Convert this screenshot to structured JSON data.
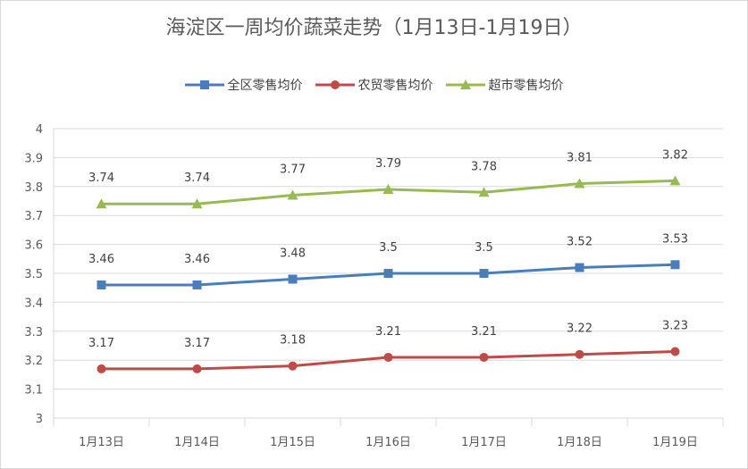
{
  "chart_data": {
    "type": "line",
    "title": "海淀区一周均价蔬菜走势（1月13日-1月19日）",
    "categories": [
      "1月13日",
      "1月14日",
      "1月15日",
      "1月16日",
      "1月17日",
      "1月18日",
      "1月19日"
    ],
    "ylim": [
      3,
      4
    ],
    "yticks": [
      "3",
      "3.1",
      "3.2",
      "3.3",
      "3.4",
      "3.5",
      "3.6",
      "3.7",
      "3.8",
      "3.9",
      "4"
    ],
    "grid": true,
    "legend_position": "top",
    "series": [
      {
        "name": "全区零售均价",
        "color": "#4a7ebb",
        "marker": "square",
        "values": [
          3.46,
          3.46,
          3.48,
          3.5,
          3.5,
          3.52,
          3.53
        ],
        "labels": [
          "3.46",
          "3.46",
          "3.48",
          "3.5",
          "3.5",
          "3.52",
          "3.53"
        ]
      },
      {
        "name": "农贸零售均价",
        "color": "#be4b48",
        "marker": "circle",
        "values": [
          3.17,
          3.17,
          3.18,
          3.21,
          3.21,
          3.22,
          3.23
        ],
        "labels": [
          "3.17",
          "3.17",
          "3.18",
          "3.21",
          "3.21",
          "3.22",
          "3.23"
        ]
      },
      {
        "name": "超市零售均价",
        "color": "#98b954",
        "marker": "triangle",
        "values": [
          3.74,
          3.74,
          3.77,
          3.79,
          3.78,
          3.81,
          3.82
        ],
        "labels": [
          "3.74",
          "3.74",
          "3.77",
          "3.79",
          "3.78",
          "3.81",
          "3.82"
        ]
      }
    ]
  }
}
